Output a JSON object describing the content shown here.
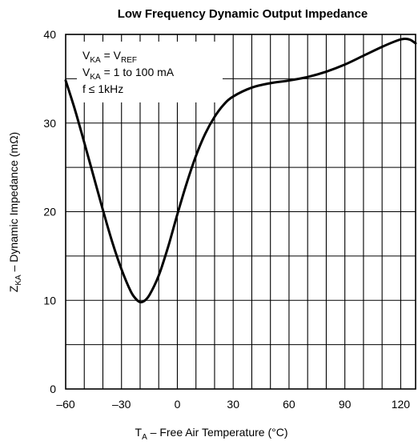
{
  "chart_data": {
    "type": "line",
    "title": "Low Frequency Dynamic Output Impedance",
    "xlabel": {
      "main": "T",
      "sub": "A",
      "rest": " – Free Air Temperature (°C)"
    },
    "ylabel": {
      "main": "Z",
      "sub": "KA",
      "rest": " – Dynamic Impedance (mΩ)"
    },
    "xlim": [
      -60,
      128
    ],
    "ylim": [
      0,
      40
    ],
    "xticks": [
      -60,
      -30,
      0,
      30,
      60,
      90,
      120
    ],
    "xtick_labels": [
      "–60",
      "–30",
      "0",
      "30",
      "60",
      "90",
      "120"
    ],
    "yticks": [
      0,
      10,
      20,
      30,
      40
    ],
    "ytick_labels": [
      "0",
      "10",
      "20",
      "30",
      "40"
    ],
    "grid": true,
    "legend": "none",
    "annotation": [
      {
        "main": "V",
        "sub": "KA",
        "mid": " = V",
        "sub2": "REF",
        "rest": ""
      },
      {
        "main": "V",
        "sub": "KA",
        "mid": " = 1 to 100 mA",
        "sub2": "",
        "rest": ""
      },
      {
        "main": "f ≤ 1kHz",
        "sub": "",
        "mid": "",
        "sub2": "",
        "rest": ""
      }
    ],
    "series": [
      {
        "x": [
          -60,
          -55,
          -50,
          -45,
          -40,
          -35,
          -30,
          -25,
          -22,
          -20,
          -18,
          -15,
          -10,
          -5,
          0,
          5,
          10,
          15,
          20,
          25,
          30,
          40,
          50,
          60,
          70,
          80,
          90,
          100,
          110,
          118,
          122,
          125,
          128
        ],
        "values": [
          34.8,
          31.5,
          27.8,
          24.0,
          20.2,
          16.6,
          13.5,
          11.0,
          10.1,
          9.8,
          9.9,
          10.6,
          12.8,
          16.0,
          19.7,
          23.2,
          26.3,
          28.8,
          30.7,
          32.1,
          33.0,
          34.0,
          34.5,
          34.8,
          35.2,
          35.8,
          36.6,
          37.6,
          38.6,
          39.3,
          39.5,
          39.4,
          39.0
        ]
      }
    ]
  }
}
